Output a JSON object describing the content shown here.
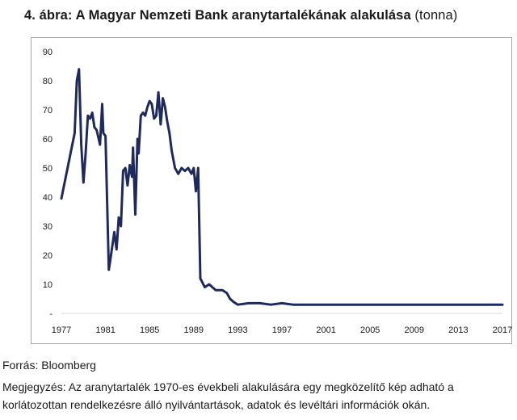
{
  "title": {
    "main": "4. ábra: A Magyar Nemzeti Bank aranytartalékának alakulása",
    "unit": "(tonna)"
  },
  "source": "Forrás: Bloomberg",
  "note": "Megjegyzés: Az aranytartalék 1970-es évekbeli alakulására egy megközelítő kép adható a korlátozottan rendelkezésre álló nyilvántartások, adatok és levéltári információk okán.",
  "colors": {
    "line": "#1f2a5c",
    "frame": "#a6a6a6",
    "grid": "#d9d9d9"
  },
  "chart_data": {
    "type": "line",
    "title": "4. ábra: A Magyar Nemzeti Bank aranytartalékának alakulása (tonna)",
    "xlabel": "",
    "ylabel": "",
    "xlim": [
      1977,
      2017
    ],
    "ylim": [
      0,
      90
    ],
    "x_ticks": [
      "1977",
      "1981",
      "1985",
      "1989",
      "1993",
      "1997",
      "2001",
      "2005",
      "2009",
      "2013",
      "2017"
    ],
    "y_ticks": [
      "-",
      "10",
      "20",
      "30",
      "40",
      "50",
      "60",
      "70",
      "80",
      "90"
    ],
    "grid": false,
    "legend": "none",
    "series": [
      {
        "x": [
          1977.0,
          1978.2,
          1978.4,
          1978.6,
          1978.8,
          1979.0,
          1979.2,
          1979.4,
          1979.6,
          1979.8,
          1980.0,
          1980.2,
          1980.5,
          1980.7,
          1980.8,
          1981.0,
          1981.3,
          1981.5,
          1981.8,
          1982.0,
          1982.2,
          1982.4,
          1982.6,
          1982.8,
          1983.0,
          1983.2,
          1983.4,
          1983.5,
          1983.7,
          1983.9,
          1984.0,
          1984.2,
          1984.4,
          1984.6,
          1984.8,
          1985.0,
          1985.2,
          1985.4,
          1985.6,
          1985.8,
          1986.0,
          1986.2,
          1986.4,
          1986.6,
          1986.8,
          1987.0,
          1987.3,
          1987.6,
          1987.9,
          1988.2,
          1988.5,
          1988.8,
          1989.0,
          1989.2,
          1989.4,
          1989.6,
          1990.0,
          1990.4,
          1991.0,
          1991.6,
          1992.0,
          1992.3,
          1992.6,
          1993.0,
          1994.0,
          1995.0,
          1996.0,
          1997.0,
          1998.0,
          2000.0,
          2005.0,
          2010.0,
          2017.0
        ],
        "y": [
          39.5,
          62,
          80,
          84,
          58,
          45,
          55,
          68,
          67,
          69,
          64,
          63,
          58,
          72,
          62,
          61,
          15,
          20,
          28,
          22,
          33,
          30,
          49,
          50,
          44,
          51,
          47,
          57,
          34,
          60,
          55,
          68,
          69,
          68,
          71,
          73,
          72,
          67,
          68,
          76,
          65,
          74,
          71,
          66,
          62,
          56,
          50,
          48,
          50,
          49,
          50,
          48,
          50,
          42,
          50,
          12,
          9,
          10,
          8,
          8,
          7,
          5,
          4,
          3,
          3.5,
          3.5,
          3,
          3.5,
          3,
          3,
          3,
          3,
          3
        ]
      }
    ]
  }
}
